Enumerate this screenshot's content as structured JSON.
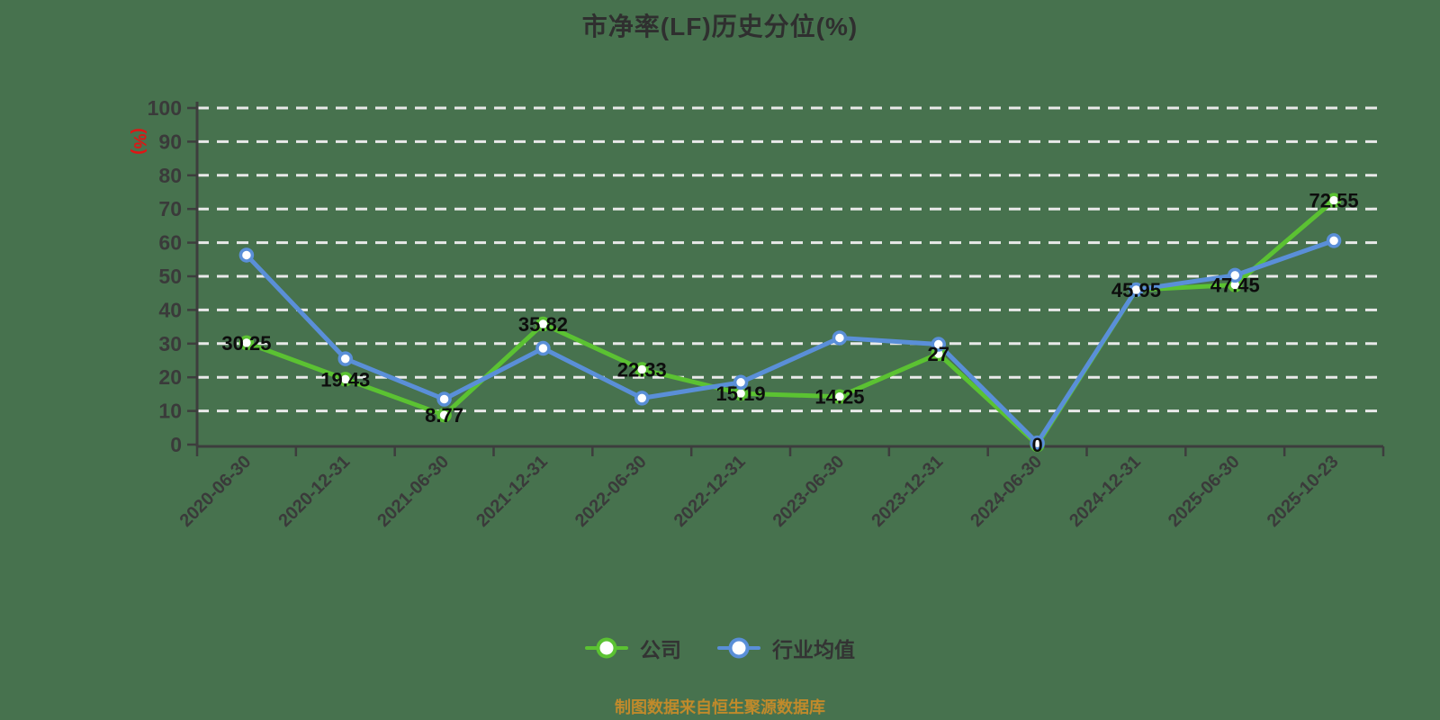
{
  "title": "市净率(LF)历史分位(%)",
  "y_axis": {
    "unit_label": "(%)",
    "tick_labels": [
      "0",
      "10",
      "20",
      "30",
      "40",
      "50",
      "60",
      "70",
      "80",
      "90",
      "100"
    ]
  },
  "legend": {
    "items": [
      {
        "label": "公司"
      },
      {
        "label": "行业均值"
      }
    ]
  },
  "source_note": "制图数据来自恒生聚源数据库",
  "colors": {
    "background": "#47724e",
    "company_line": "#5bc232",
    "industry_line": "#5a8fd8",
    "marker_fill": "#ffffff",
    "grid": "#e9e9e9",
    "axis": "#3d3d3d",
    "tick_label": "#3a3a3a",
    "value_label": "#0d0d0d",
    "unit_label_red": "#e01414",
    "title_text": "#2f2f2f",
    "legend_text": "#333333",
    "source_note_orange": "#c08a2b"
  },
  "chart_data": {
    "type": "line",
    "categories": [
      "2020-06-30",
      "2020-12-31",
      "2021-06-30",
      "2021-12-31",
      "2022-06-30",
      "2022-12-31",
      "2023-06-30",
      "2023-12-31",
      "2024-06-30",
      "2024-12-31",
      "2025-06-30",
      "2025-10-23"
    ],
    "series": [
      {
        "name": "公司",
        "color": "#5bc232",
        "values": [
          30.25,
          19.43,
          8.77,
          35.82,
          22.33,
          15.19,
          14.25,
          27,
          0,
          45.95,
          47.45,
          72.55
        ],
        "point_labels": [
          "30.25",
          "19.43",
          "8.77",
          "35.82",
          "22.33",
          "15.19",
          "14.25",
          "27",
          "0",
          "45.95",
          "47.45",
          "72.55"
        ]
      },
      {
        "name": "行业均值",
        "color": "#5a8fd8",
        "values": [
          56.3,
          25.5,
          13.5,
          28.6,
          13.8,
          18.5,
          31.7,
          29.8,
          0.5,
          46.0,
          50.3,
          60.6
        ],
        "point_labels": null
      }
    ],
    "ylim": [
      0,
      100
    ],
    "ytick_step": 10,
    "xlabel": "",
    "ylabel": "(%)",
    "grid": "horizontal-dashed",
    "legend_position": "bottom",
    "x_label_rotation": 45
  }
}
